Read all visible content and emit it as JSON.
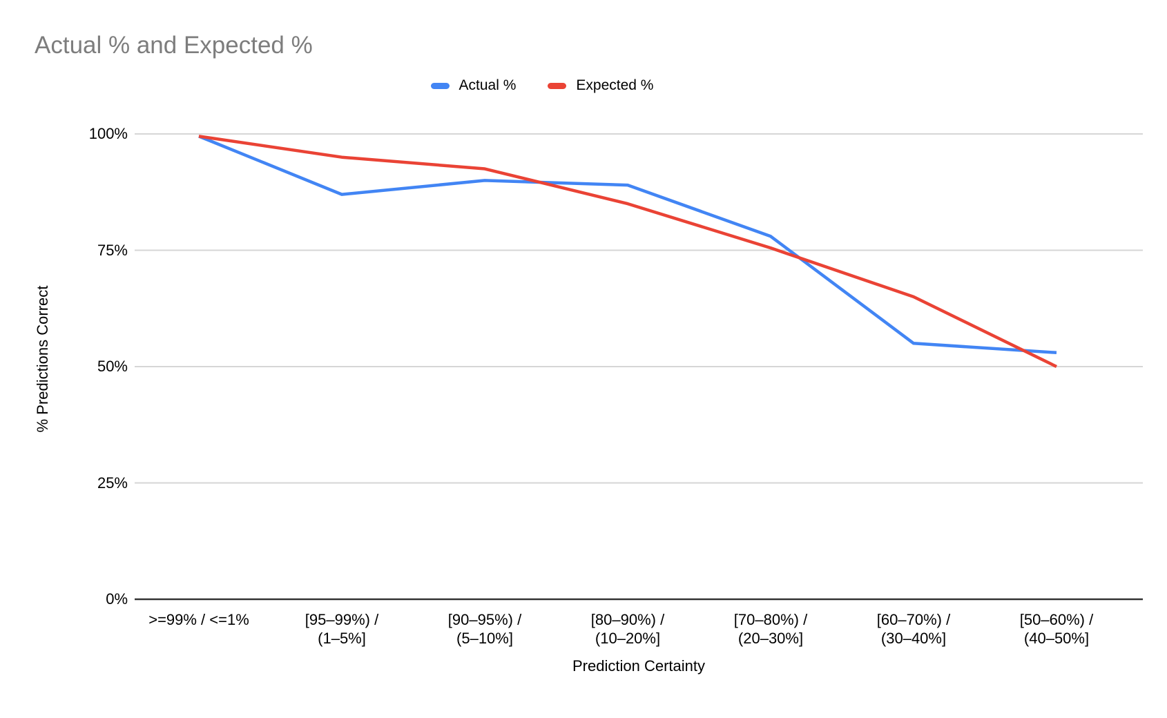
{
  "chart_data": {
    "type": "line",
    "title": "Actual % and Expected %",
    "xlabel": "Prediction Certainty",
    "ylabel": "% Predictions Correct",
    "legend_position": "top",
    "grid": true,
    "ylim": [
      0,
      100
    ],
    "y_ticks": [
      {
        "label": "0%",
        "value": 0
      },
      {
        "label": "25%",
        "value": 25
      },
      {
        "label": "50%",
        "value": 50
      },
      {
        "label": "75%",
        "value": 75
      },
      {
        "label": "100%",
        "value": 100
      }
    ],
    "categories": [
      ">=99% / <=1%",
      "[95–99%) / (1–5%]",
      "[90–95%) / (5–10%]",
      "[80–90%) / (10–20%]",
      "[70–80%) / (20–30%]",
      "[60–70%) / (30–40%]",
      "[50–60%) / (40–50%]"
    ],
    "categories_display": [
      [
        ">=99% / <=1%"
      ],
      [
        "[95–99%) /",
        "(1–5%]"
      ],
      [
        "[90–95%) /",
        "(5–10%]"
      ],
      [
        "[80–90%) /",
        "(10–20%]"
      ],
      [
        "[70–80%) /",
        "(20–30%]"
      ],
      [
        "[60–70%) /",
        "(30–40%]"
      ],
      [
        "[50–60%) /",
        "(40–50%]"
      ]
    ],
    "series": [
      {
        "name": "Actual %",
        "color": "#4285F4",
        "values": [
          99.5,
          87,
          90,
          89,
          78,
          55,
          53
        ]
      },
      {
        "name": "Expected %",
        "color": "#EA4335",
        "values": [
          99.5,
          95,
          92.5,
          85,
          75.5,
          65,
          50
        ]
      }
    ],
    "colors": {
      "gridline": "#d6d6d6",
      "baseline": "#333333",
      "title_text": "#7d7d7d",
      "axis_text": "#000000"
    }
  }
}
